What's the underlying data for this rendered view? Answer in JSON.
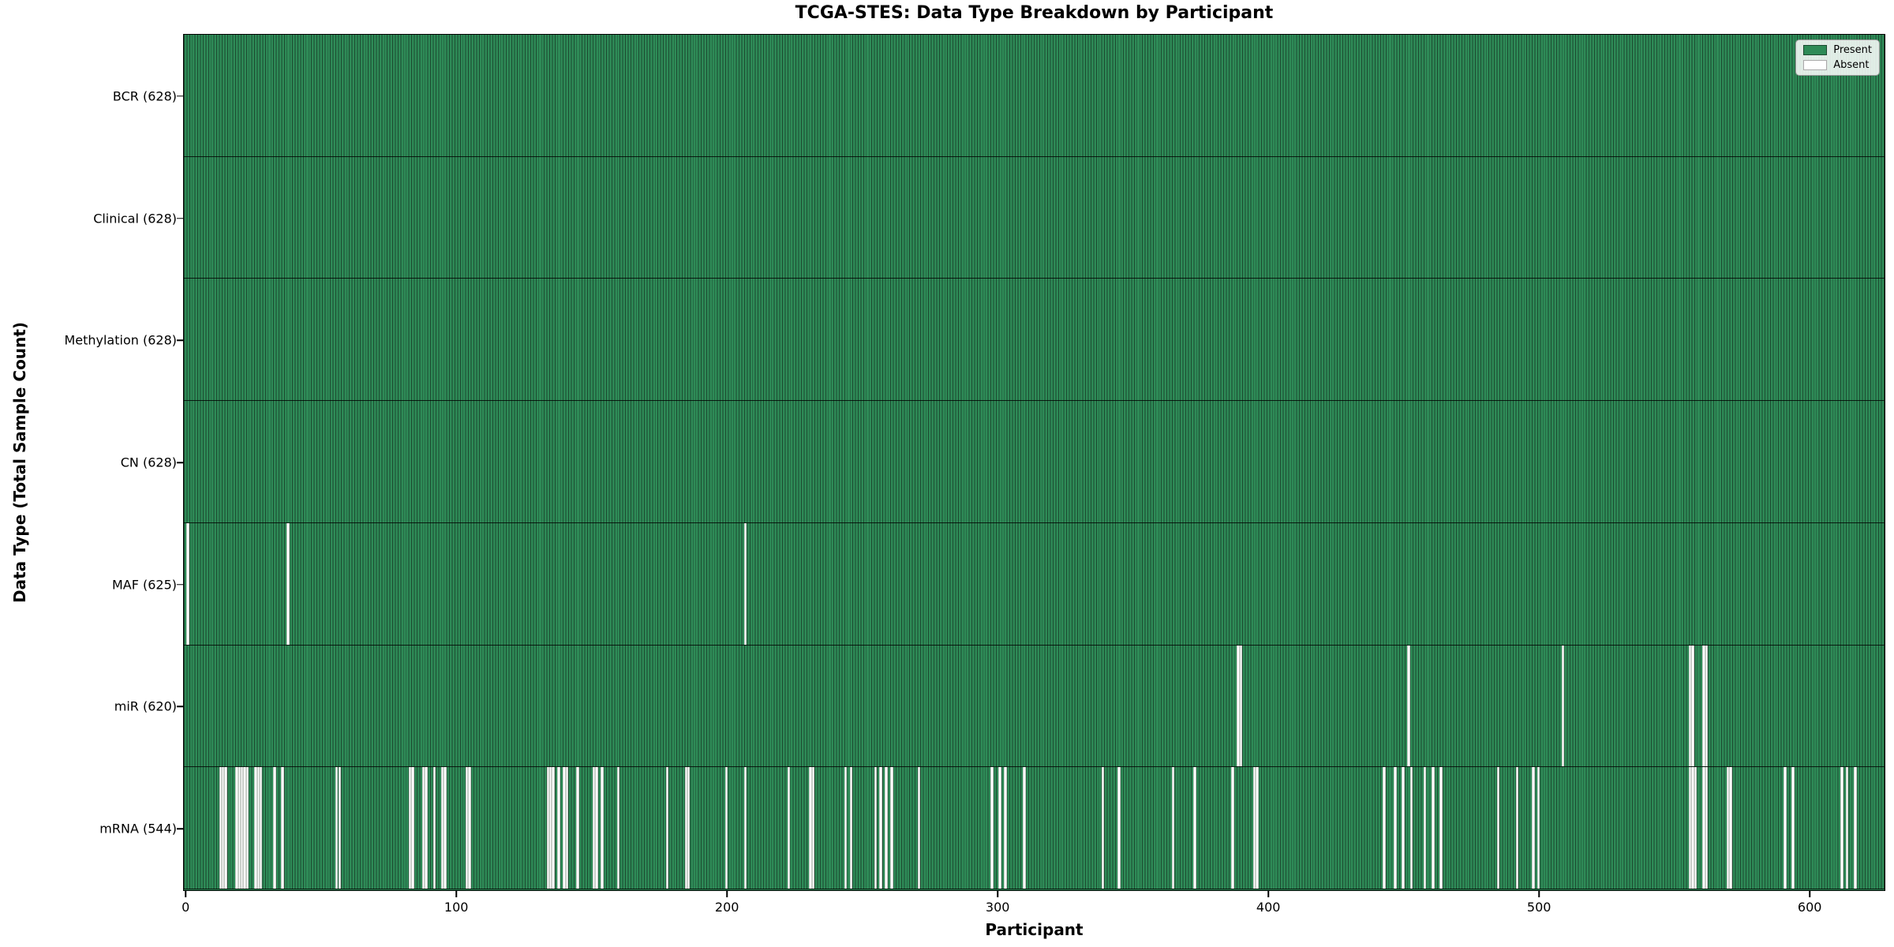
{
  "chart": {
    "title": "TCGA-STES: Data Type Breakdown by Participant",
    "xlabel": "Participant",
    "ylabel": "Data Type (Total Sample Count)",
    "legend": {
      "present_label": "Present",
      "absent_label": "Absent"
    }
  },
  "chart_data": {
    "type": "heatmap",
    "subtype": "presence-absence-matrix",
    "title": "TCGA-STES: Data Type Breakdown by Participant",
    "xlabel": "Participant",
    "ylabel": "Data Type (Total Sample Count)",
    "total_participants": 628,
    "xticks": [
      0,
      100,
      200,
      300,
      400,
      500,
      600
    ],
    "legend_entries": [
      "Present",
      "Absent"
    ],
    "legend_position": "upper right",
    "grid": false,
    "colors": {
      "present": "#2e8b57",
      "absent": "#ffffff",
      "bar_edge": "#1c4a30",
      "plot_border": "#000000"
    },
    "rows": [
      {
        "key": "bcr",
        "label": "BCR (628)",
        "present_count": 628,
        "absent_participants": []
      },
      {
        "key": "clinical",
        "label": "Clinical (628)",
        "present_count": 628,
        "absent_participants": []
      },
      {
        "key": "methylation",
        "label": "Methylation (628)",
        "present_count": 628,
        "absent_participants": []
      },
      {
        "key": "cn",
        "label": "CN (628)",
        "present_count": 628,
        "absent_participants": []
      },
      {
        "key": "maf",
        "label": "MAF (625)",
        "present_count": 625,
        "absent_participants": [
          1,
          38,
          207
        ]
      },
      {
        "key": "mir",
        "label": "miR (620)",
        "present_count": 620,
        "absent_participants": [
          389,
          390,
          452,
          509,
          556,
          557,
          561,
          562
        ]
      },
      {
        "key": "mrna",
        "label": "mRNA (544)",
        "present_count": 544,
        "absent_participants": [
          13,
          14,
          15,
          19,
          20,
          21,
          22,
          23,
          26,
          27,
          28,
          33,
          36,
          56,
          57,
          83,
          84,
          88,
          89,
          92,
          95,
          96,
          104,
          105,
          134,
          135,
          136,
          138,
          140,
          141,
          145,
          151,
          152,
          154,
          160,
          178,
          185,
          186,
          200,
          207,
          223,
          231,
          232,
          244,
          246,
          255,
          257,
          259,
          261,
          271,
          298,
          301,
          303,
          310,
          339,
          345,
          365,
          373,
          387,
          395,
          396,
          443,
          447,
          450,
          453,
          458,
          461,
          464,
          485,
          492,
          498,
          500,
          556,
          557,
          558,
          561,
          562,
          570,
          571,
          591,
          594,
          612,
          614,
          617
        ]
      }
    ]
  }
}
